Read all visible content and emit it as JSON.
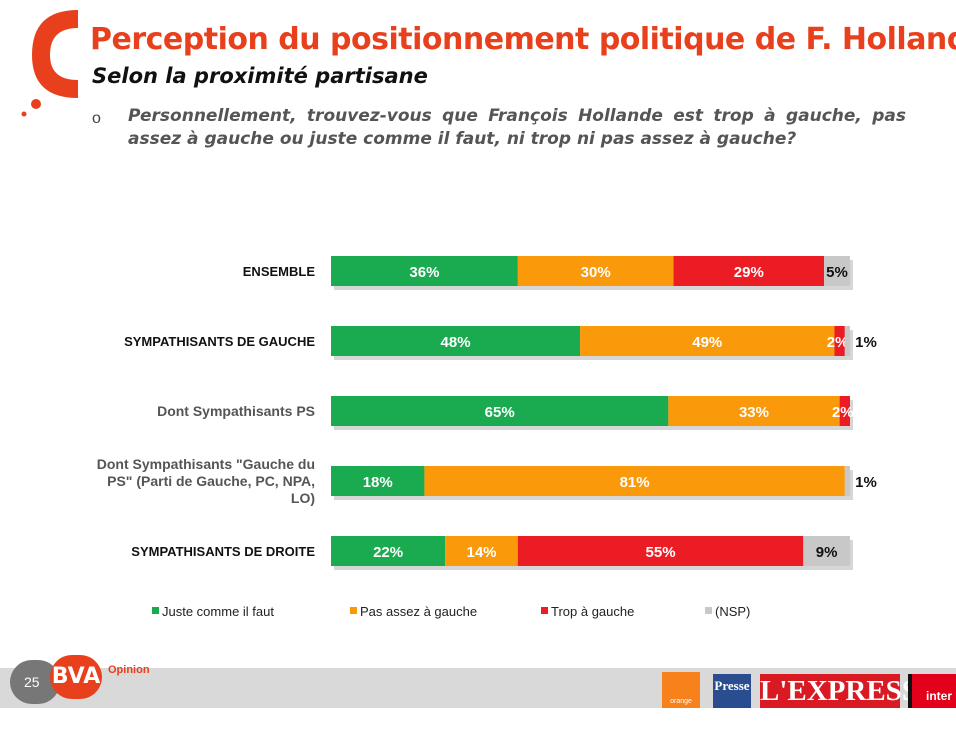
{
  "header": {
    "title": "Perception du positionnement politique de F. Hollande",
    "subtitle": "Selon la proximité partisane",
    "bullet": "o",
    "question": "Personnellement, trouvez-vous que François Hollande est trop à gauche, pas assez à gauche ou juste comme il faut, ni trop ni pas assez à gauche?"
  },
  "chart_data": {
    "type": "bar",
    "orientation": "horizontal",
    "stacked": true,
    "categories": [
      "ENSEMBLE",
      "SYMPATHISANTS DE GAUCHE",
      "Dont Sympathisants PS",
      "Dont Sympathisants \"Gauche du PS\" (Parti de Gauche, PC, NPA, LO)",
      "SYMPATHISANTS DE DROITE"
    ],
    "category_bold": [
      true,
      true,
      false,
      false,
      true
    ],
    "series": [
      {
        "name": "Juste comme il faut",
        "color": "#1aaa50",
        "values": [
          36,
          48,
          65,
          18,
          22
        ],
        "labels": [
          "36%",
          "48%",
          "65%",
          "18%",
          "22%"
        ]
      },
      {
        "name": "Pas assez à gauche",
        "color": "#fa9a0a",
        "values": [
          30,
          49,
          33,
          81,
          14
        ],
        "labels": [
          "30%",
          "49%",
          "33%",
          "81%",
          "14%"
        ]
      },
      {
        "name": "Trop à gauche",
        "color": "#ec1c24",
        "values": [
          29,
          2,
          2,
          0,
          55
        ],
        "labels": [
          "29%",
          "2%",
          "2%",
          "",
          "55%"
        ]
      },
      {
        "name": "(NSP)",
        "color": "#c8c8c8",
        "values": [
          5,
          1,
          0,
          1,
          9
        ],
        "labels": [
          "5%",
          "1%",
          "",
          "1%",
          "9%"
        ]
      }
    ],
    "unit": "%",
    "legend_position": "bottom"
  },
  "footer": {
    "page_number": "25",
    "logo_text": "BVA",
    "logo_sub": "Opinion",
    "partners": [
      "orange",
      "Presse",
      "L'EXPRESS",
      "inter"
    ]
  }
}
